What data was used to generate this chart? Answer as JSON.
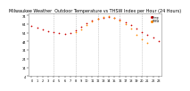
{
  "title": "Milwaukee Weather  Outdoor Temperature vs THSW Index per Hour (24 Hours)",
  "bg_color": "#ffffff",
  "plot_bg_color": "#ffffff",
  "grid_color": "#aaaaaa",
  "temp_color": "#cc0000",
  "thsw_color": "#ff8800",
  "legend_temp_color": "#cc0000",
  "legend_thsw_color": "#ff8800",
  "temp_scattered": [
    [
      0,
      62
    ],
    [
      1,
      60
    ],
    [
      2,
      58
    ],
    [
      3,
      56
    ],
    [
      4,
      55
    ],
    [
      5,
      54
    ],
    [
      6,
      53
    ],
    [
      7,
      54
    ],
    [
      8,
      57
    ],
    [
      9,
      61
    ],
    [
      10,
      65
    ],
    [
      11,
      68
    ],
    [
      12,
      70
    ],
    [
      13,
      71
    ],
    [
      14,
      72
    ],
    [
      15,
      71
    ],
    [
      16,
      69
    ],
    [
      17,
      66
    ],
    [
      18,
      63
    ],
    [
      19,
      59
    ],
    [
      20,
      55
    ],
    [
      21,
      52
    ],
    [
      22,
      48
    ],
    [
      23,
      44
    ]
  ],
  "thsw_scattered": [
    [
      8,
      55
    ],
    [
      9,
      58
    ],
    [
      10,
      63
    ],
    [
      11,
      67
    ],
    [
      12,
      70
    ],
    [
      13,
      72
    ],
    [
      14,
      73
    ],
    [
      15,
      71
    ],
    [
      16,
      68
    ],
    [
      17,
      64
    ],
    [
      18,
      59
    ],
    [
      19,
      52
    ],
    [
      20,
      46
    ],
    [
      21,
      42
    ]
  ],
  "ylim": [
    4,
    76
  ],
  "yticks": [
    4,
    14,
    24,
    34,
    44,
    54,
    64,
    74
  ],
  "xlim": [
    -0.5,
    23.5
  ],
  "xticks": [
    0,
    1,
    2,
    3,
    4,
    5,
    6,
    7,
    8,
    9,
    10,
    11,
    12,
    13,
    14,
    15,
    16,
    17,
    18,
    19,
    20,
    21,
    22,
    23
  ],
  "xtick_labels": [
    "0",
    "1",
    "2",
    "3",
    "4",
    "5",
    "6",
    "7",
    "8",
    "9",
    "10",
    "11",
    "12",
    "13",
    "14",
    "15",
    "16",
    "17",
    "18",
    "19",
    "20",
    "21",
    "22",
    "23"
  ],
  "vgrid_hours": [
    4,
    8,
    12,
    16,
    20
  ],
  "marker_size": 1.5,
  "title_fontsize": 3.5,
  "tick_fontsize": 2.5,
  "spine_color": "#888888"
}
